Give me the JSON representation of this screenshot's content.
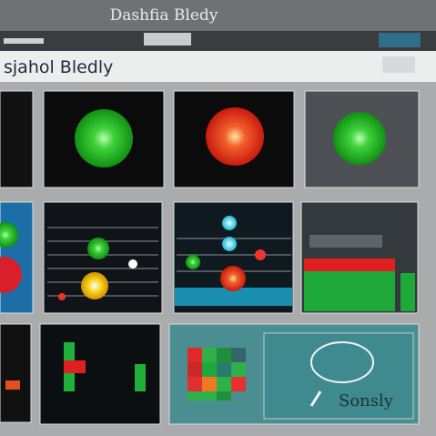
{
  "header": {
    "title": "Dashfia Bledy"
  },
  "subheader": {
    "title": "sjahol Bledly"
  },
  "search_panel": {
    "label": "Sonsly"
  }
}
